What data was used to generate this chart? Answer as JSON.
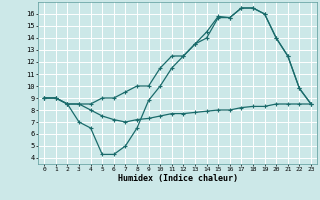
{
  "xlabel": "Humidex (Indice chaleur)",
  "xlim": [
    -0.5,
    23.5
  ],
  "ylim": [
    3.5,
    17
  ],
  "yticks": [
    4,
    5,
    6,
    7,
    8,
    9,
    10,
    11,
    12,
    13,
    14,
    15,
    16
  ],
  "xticks": [
    0,
    1,
    2,
    3,
    4,
    5,
    6,
    7,
    8,
    9,
    10,
    11,
    12,
    13,
    14,
    15,
    16,
    17,
    18,
    19,
    20,
    21,
    22,
    23
  ],
  "bg_color": "#cce8e8",
  "line_color": "#1a6b6b",
  "grid_color": "#b0d8d8",
  "line1_x": [
    0,
    1,
    2,
    3,
    4,
    5,
    6,
    7,
    8,
    9,
    10,
    11,
    12,
    13,
    14,
    15,
    16,
    17,
    18,
    19,
    20,
    21,
    22,
    23
  ],
  "line1_y": [
    9,
    9,
    8.5,
    8.5,
    8.5,
    9,
    9,
    9.5,
    10,
    10,
    11.5,
    12.5,
    12.5,
    13.5,
    14.5,
    15.8,
    15.7,
    16.5,
    16.5,
    16,
    14,
    12.5,
    9.8,
    8.5
  ],
  "line2_x": [
    0,
    1,
    2,
    3,
    4,
    5,
    6,
    7,
    8,
    9,
    10,
    11,
    12,
    13,
    14,
    15,
    16,
    17,
    18,
    19,
    20,
    21,
    22,
    23
  ],
  "line2_y": [
    9,
    9,
    8.5,
    7.0,
    6.5,
    4.3,
    4.3,
    5.0,
    6.5,
    8.8,
    10,
    11.5,
    12.5,
    13.5,
    14,
    15.7,
    15.7,
    16.5,
    16.5,
    16,
    14,
    12.5,
    9.8,
    8.5
  ],
  "line3_x": [
    0,
    1,
    2,
    3,
    4,
    5,
    6,
    7,
    8,
    9,
    10,
    11,
    12,
    13,
    14,
    15,
    16,
    17,
    18,
    19,
    20,
    21,
    22,
    23
  ],
  "line3_y": [
    9,
    9,
    8.5,
    8.5,
    8.0,
    7.5,
    7.2,
    7.0,
    7.2,
    7.3,
    7.5,
    7.7,
    7.7,
    7.8,
    7.9,
    8.0,
    8.0,
    8.2,
    8.3,
    8.3,
    8.5,
    8.5,
    8.5,
    8.5
  ]
}
